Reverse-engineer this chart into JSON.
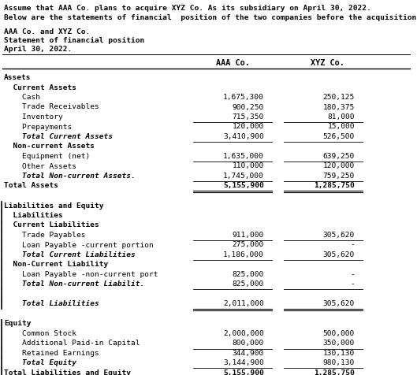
{
  "intro_line1": "Assume that AAA Co. plans to acquire XYZ Co. As its subsidiary on April 30, 2022.",
  "intro_line2": "Below are the statements of financial  position of the two companies before the acquisition is made:",
  "header1": "AAA Co. and XYZ Co.",
  "header2": "Statement of financial position",
  "header3": "April 30, 2022.",
  "col_aaa": "AAA Co.",
  "col_xyz": "XYZ Co.",
  "rows": [
    {
      "label": "Assets",
      "aaa": "",
      "xyz": "",
      "style": "bold",
      "indent": 0
    },
    {
      "label": "  Current Assets",
      "aaa": "",
      "xyz": "",
      "style": "bold",
      "indent": 0
    },
    {
      "label": "    Cash",
      "aaa": "1,675,300",
      "xyz": "250,125",
      "style": "normal",
      "indent": 0
    },
    {
      "label": "    Trade Receivables",
      "aaa": "900,250",
      "xyz": "180,375",
      "style": "normal",
      "indent": 0
    },
    {
      "label": "    Inventory",
      "aaa": "715,350",
      "xyz": "81,000",
      "style": "normal",
      "indent": 0
    },
    {
      "label": "    Prepayments",
      "aaa": "120,000",
      "xyz": "15,000",
      "style": "normal",
      "indent": 0,
      "uline_above": true
    },
    {
      "label": "    Total Current Assets",
      "aaa": "3,410,900",
      "xyz": "526,500",
      "style": "bolditalic",
      "indent": 0,
      "uline_below": true
    },
    {
      "label": "  Non-current Assets",
      "aaa": "",
      "xyz": "",
      "style": "bold",
      "indent": 0
    },
    {
      "label": "    Equipment (net)",
      "aaa": "1,635,000",
      "xyz": "639,250",
      "style": "normal",
      "indent": 0
    },
    {
      "label": "    Other Assets",
      "aaa": "110,000",
      "xyz": "120,000",
      "style": "normal",
      "indent": 0,
      "uline_above": true
    },
    {
      "label": "    Total Non-current Assets.",
      "aaa": "1,745,000",
      "xyz": "759,250",
      "style": "bolditalic",
      "indent": 0,
      "uline_below": true
    },
    {
      "label": "Total Assets",
      "aaa": "5,155,900",
      "xyz": "1,285,750",
      "style": "bold",
      "indent": 0,
      "double_uline": true
    },
    {
      "label": "",
      "aaa": "",
      "xyz": "",
      "style": "normal",
      "indent": 0
    },
    {
      "label": "Liabilities and Equity",
      "aaa": "",
      "xyz": "",
      "style": "bold",
      "indent": 0
    },
    {
      "label": "  Liabilities",
      "aaa": "",
      "xyz": "",
      "style": "bold",
      "indent": 0
    },
    {
      "label": "  Current Liabilities",
      "aaa": "",
      "xyz": "",
      "style": "bold",
      "indent": 0
    },
    {
      "label": "    Trade Payables",
      "aaa": "911,000",
      "xyz": "305,620",
      "style": "normal",
      "indent": 0
    },
    {
      "label": "    Loan Payable -current portion",
      "aaa": "275,000",
      "xyz": "-",
      "style": "normal",
      "indent": 0,
      "uline_above": true
    },
    {
      "label": "    Total Current Liabilities",
      "aaa": "1,186,000",
      "xyz": "305,620",
      "style": "bolditalic",
      "indent": 0,
      "uline_below": true
    },
    {
      "label": "  Non-Current Liability",
      "aaa": "",
      "xyz": "",
      "style": "bold",
      "indent": 0
    },
    {
      "label": "    Loan Payable -non-current port",
      "aaa": "825,000",
      "xyz": "-",
      "style": "normal",
      "indent": 0
    },
    {
      "label": "    Total Non-current Liabilit.",
      "aaa": "825,000",
      "xyz": "-",
      "style": "bolditalic",
      "indent": 0,
      "uline_below": true
    },
    {
      "label": "",
      "aaa": "",
      "xyz": "",
      "style": "normal",
      "indent": 0
    },
    {
      "label": "    Total Liabilities",
      "aaa": "2,011,000",
      "xyz": "305,620",
      "style": "bolditalic",
      "indent": 0,
      "double_uline": true
    },
    {
      "label": "",
      "aaa": "",
      "xyz": "",
      "style": "normal",
      "indent": 0
    },
    {
      "label": "Equity",
      "aaa": "",
      "xyz": "",
      "style": "bold",
      "indent": 0
    },
    {
      "label": "    Common Stock",
      "aaa": "2,000,000",
      "xyz": "500,000",
      "style": "normal",
      "indent": 0
    },
    {
      "label": "    Additional Paid-in Capital",
      "aaa": "800,000",
      "xyz": "350,000",
      "style": "normal",
      "indent": 0
    },
    {
      "label": "    Retained Earnings",
      "aaa": "344,900",
      "xyz": "130,130",
      "style": "normal",
      "indent": 0,
      "uline_above": true
    },
    {
      "label": "    Total Equity",
      "aaa": "3,144,900",
      "xyz": "980,130",
      "style": "bolditalic",
      "indent": 0,
      "uline_below": true
    },
    {
      "label": "Total Liabilities and Equity",
      "aaa": "5,155,900",
      "xyz": "1,285,750",
      "style": "bold",
      "indent": 0,
      "double_uline": true
    }
  ],
  "bg_color": "#ffffff",
  "text_color": "#000000",
  "font_size": 6.8,
  "intro_font_size": 6.8,
  "left_border_rows": [
    13,
    14,
    15,
    16,
    17,
    18,
    19,
    20,
    21,
    22,
    23,
    25,
    26,
    27,
    28,
    29,
    30
  ]
}
